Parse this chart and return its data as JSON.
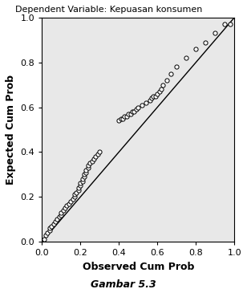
{
  "title": "Dependent Variable: Kepuasan konsumen",
  "xlabel": "Observed Cum Prob",
  "ylabel": "Expected Cum Prob",
  "caption": "Gambar 5.3",
  "xlim": [
    0.0,
    1.0
  ],
  "ylim": [
    0.0,
    1.0
  ],
  "xticks": [
    0.0,
    0.2,
    0.4,
    0.6,
    0.8,
    1.0
  ],
  "yticks": [
    0.0,
    0.2,
    0.4,
    0.6,
    0.8,
    1.0
  ],
  "background_color": "#e8e8e8",
  "scatter_facecolor": "white",
  "scatter_edgecolor": "black",
  "line_color": "black",
  "observed": [
    0.01,
    0.02,
    0.03,
    0.04,
    0.04,
    0.05,
    0.06,
    0.07,
    0.08,
    0.09,
    0.1,
    0.1,
    0.11,
    0.12,
    0.13,
    0.14,
    0.15,
    0.16,
    0.17,
    0.17,
    0.18,
    0.19,
    0.19,
    0.2,
    0.2,
    0.21,
    0.21,
    0.22,
    0.22,
    0.23,
    0.23,
    0.24,
    0.24,
    0.25,
    0.26,
    0.27,
    0.28,
    0.29,
    0.3,
    0.4,
    0.41,
    0.42,
    0.43,
    0.44,
    0.45,
    0.46,
    0.47,
    0.48,
    0.49,
    0.5,
    0.52,
    0.54,
    0.56,
    0.57,
    0.58,
    0.59,
    0.6,
    0.61,
    0.62,
    0.63,
    0.65,
    0.67,
    0.7,
    0.75,
    0.8,
    0.85,
    0.9,
    0.95,
    0.98
  ],
  "expected": [
    0.01,
    0.03,
    0.04,
    0.05,
    0.06,
    0.07,
    0.08,
    0.09,
    0.1,
    0.11,
    0.12,
    0.13,
    0.14,
    0.15,
    0.16,
    0.17,
    0.18,
    0.19,
    0.2,
    0.21,
    0.22,
    0.23,
    0.24,
    0.25,
    0.26,
    0.27,
    0.28,
    0.29,
    0.3,
    0.31,
    0.32,
    0.33,
    0.34,
    0.35,
    0.36,
    0.37,
    0.38,
    0.39,
    0.4,
    0.54,
    0.55,
    0.55,
    0.56,
    0.56,
    0.57,
    0.57,
    0.58,
    0.58,
    0.59,
    0.6,
    0.61,
    0.62,
    0.63,
    0.64,
    0.65,
    0.65,
    0.66,
    0.67,
    0.68,
    0.7,
    0.72,
    0.75,
    0.78,
    0.82,
    0.86,
    0.89,
    0.93,
    0.97,
    0.97
  ]
}
